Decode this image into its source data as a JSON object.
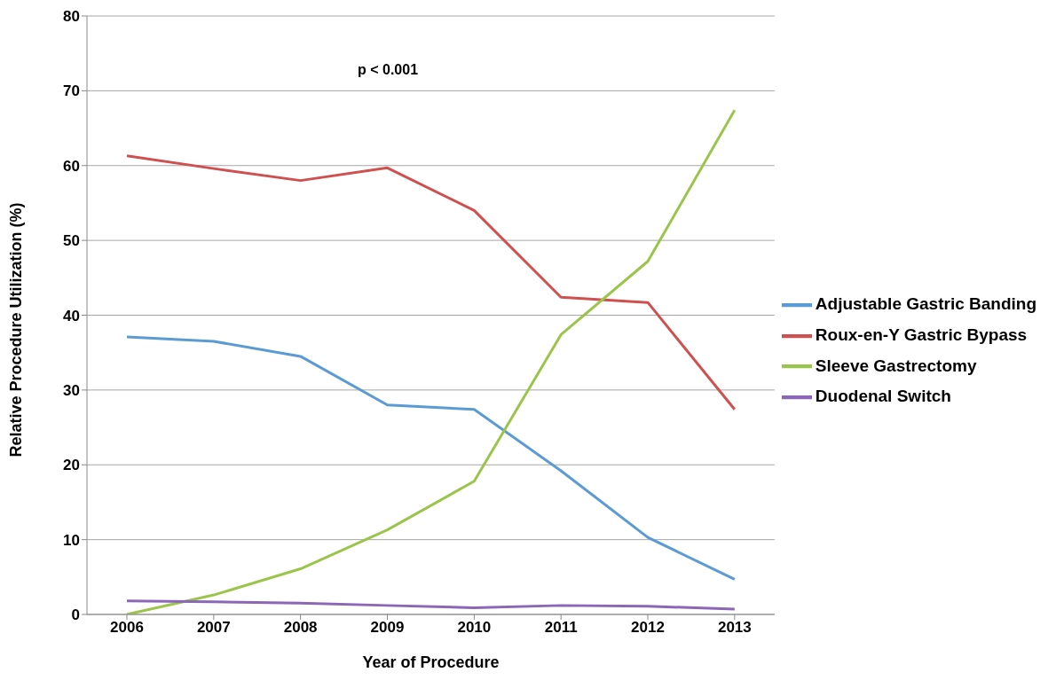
{
  "chart_data": {
    "type": "line",
    "xlabel": "Year of Procedure",
    "ylabel": "Relative Procedure Utilization (%)",
    "annotations": [
      "p < 0.001"
    ],
    "categories": [
      "2006",
      "2007",
      "2008",
      "2009",
      "2010",
      "2011",
      "2012",
      "2013"
    ],
    "series": [
      {
        "name": "Adjustable Gastric Banding",
        "color": "#5b9bd5",
        "values": [
          37.1,
          36.5,
          34.5,
          28,
          27.4,
          19.2,
          10.3,
          4.7
        ]
      },
      {
        "name": "Roux-en-Y Gastric Bypass",
        "color": "#d0504f",
        "values": [
          61.3,
          59.6,
          58,
          59.7,
          54,
          42.4,
          41.7,
          27.4
        ]
      },
      {
        "name": "Sleeve Gastrectomy",
        "color": "#9bc54a",
        "values": [
          0,
          2.6,
          6.1,
          11.3,
          17.8,
          37.4,
          47.2,
          67.4
        ]
      },
      {
        "name": "Duodenal Switch",
        "color": "#8c67b7",
        "values": [
          1.8,
          1.7,
          1.5,
          1.2,
          0.9,
          1.2,
          1.1,
          0.7
        ]
      }
    ],
    "ylim": [
      0,
      80
    ],
    "yticks": [
      0,
      10,
      20,
      30,
      40,
      50,
      60,
      70,
      80
    ],
    "grid": "y",
    "legend": "right",
    "marker": "none",
    "line_style": "solid"
  }
}
